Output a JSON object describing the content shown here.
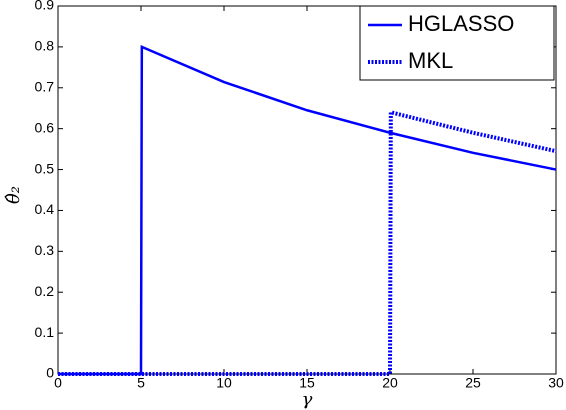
{
  "chart_data": {
    "type": "line",
    "x_label": "γ",
    "y_label": "θ̂₂",
    "xlim": [
      0,
      30
    ],
    "ylim": [
      0,
      0.9
    ],
    "xticks": [
      0,
      5,
      10,
      15,
      20,
      25,
      30
    ],
    "yticks": [
      0,
      0.1,
      0.2,
      0.3,
      0.4,
      0.5,
      0.6,
      0.7,
      0.8,
      0.9
    ],
    "legend": "upper right",
    "series": [
      {
        "name": "HGLASSO",
        "color": "#0000ff",
        "dash": "solid",
        "x": [
          0,
          5,
          5.05,
          10,
          15,
          20,
          25,
          30
        ],
        "values": [
          0,
          0,
          0.8,
          0.714,
          0.645,
          0.59,
          0.541,
          0.5
        ]
      },
      {
        "name": "MKL",
        "color": "#0000ff",
        "dash": "dotted",
        "x": [
          0,
          20,
          20.05,
          25,
          30
        ],
        "values": [
          0,
          0,
          0.64,
          0.59,
          0.545
        ]
      }
    ]
  }
}
